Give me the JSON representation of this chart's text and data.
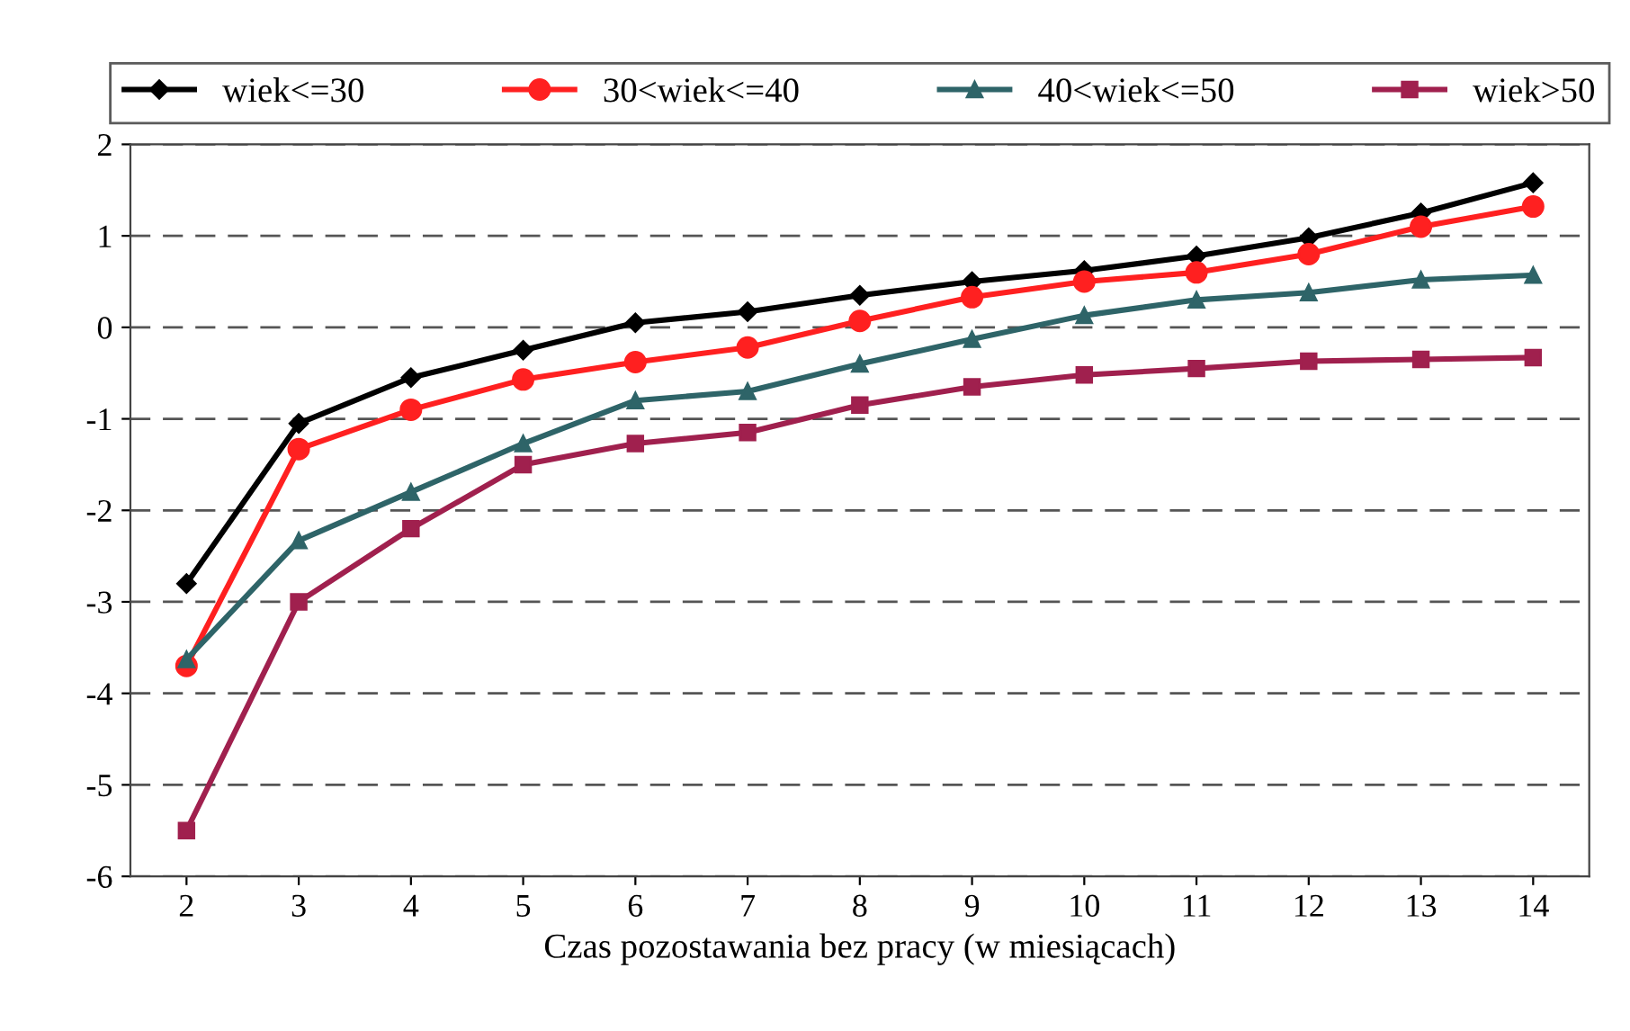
{
  "chart_data": {
    "type": "line",
    "xlabel": "Czas pozostawania bez pracy (w miesiącach)",
    "categories": [
      "2",
      "3",
      "4",
      "5",
      "6",
      "7",
      "8",
      "9",
      "10",
      "11",
      "12",
      "13",
      "14"
    ],
    "ylim": [
      -6,
      2
    ],
    "yticks": [
      -6,
      -5,
      -4,
      -3,
      -2,
      -1,
      0,
      1,
      2
    ],
    "grid": "y",
    "legend": "top",
    "series": [
      {
        "name": "wiek<=30",
        "color": "#000000",
        "marker": "diamond",
        "values": [
          -2.8,
          -1.05,
          -0.55,
          -0.25,
          0.05,
          0.17,
          0.35,
          0.5,
          0.62,
          0.78,
          0.98,
          1.25,
          1.58
        ]
      },
      {
        "name": "30<wiek<=40",
        "color": "#ff2020",
        "marker": "circle",
        "values": [
          -3.7,
          -1.33,
          -0.9,
          -0.57,
          -0.38,
          -0.22,
          0.07,
          0.33,
          0.5,
          0.6,
          0.8,
          1.1,
          1.32
        ]
      },
      {
        "name": "40<wiek<=50",
        "color": "#2e6468",
        "marker": "triangle",
        "values": [
          -3.63,
          -2.33,
          -1.8,
          -1.27,
          -0.8,
          -0.7,
          -0.4,
          -0.13,
          0.13,
          0.3,
          0.38,
          0.52,
          0.57
        ]
      },
      {
        "name": "wiek>50",
        "color": "#a0204e",
        "marker": "square",
        "values": [
          -5.5,
          -3.0,
          -2.2,
          -1.5,
          -1.27,
          -1.15,
          -0.85,
          -0.65,
          -0.52,
          -0.45,
          -0.37,
          -0.35,
          -0.33
        ]
      }
    ]
  }
}
